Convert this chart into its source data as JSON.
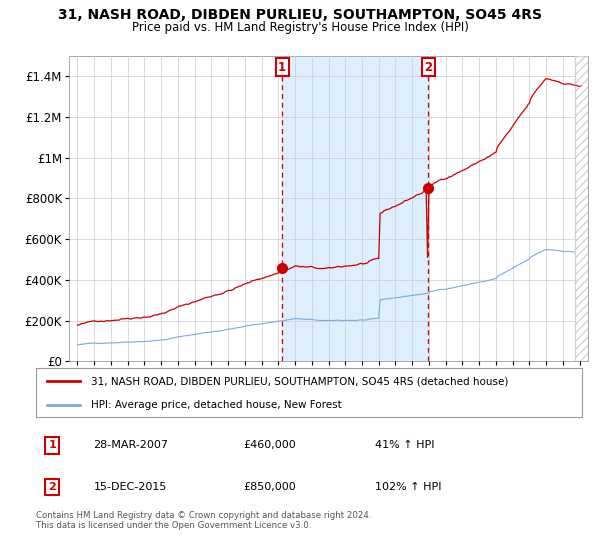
{
  "title": "31, NASH ROAD, DIBDEN PURLIEU, SOUTHAMPTON, SO45 4RS",
  "subtitle": "Price paid vs. HM Land Registry's House Price Index (HPI)",
  "legend_label_red": "31, NASH ROAD, DIBDEN PURLIEU, SOUTHAMPTON, SO45 4RS (detached house)",
  "legend_label_blue": "HPI: Average price, detached house, New Forest",
  "sale1_date": "28-MAR-2007",
  "sale1_price": "£460,000",
  "sale1_hpi": "41% ↑ HPI",
  "sale1_year": 2007.23,
  "sale1_value": 460000,
  "sale2_date": "15-DEC-2015",
  "sale2_price": "£850,000",
  "sale2_hpi": "102% ↑ HPI",
  "sale2_year": 2015.96,
  "sale2_value": 850000,
  "red_color": "#cc0000",
  "blue_color": "#7aaadd",
  "shade_color": "#ddeeff",
  "dashed_color": "#cc0000",
  "grid_color": "#cccccc",
  "background_color": "#ffffff",
  "footer": "Contains HM Land Registry data © Crown copyright and database right 2024.\nThis data is licensed under the Open Government Licence v3.0.",
  "ylim": [
    0,
    1500000
  ],
  "xlim_start": 1994.5,
  "xlim_end": 2025.5
}
